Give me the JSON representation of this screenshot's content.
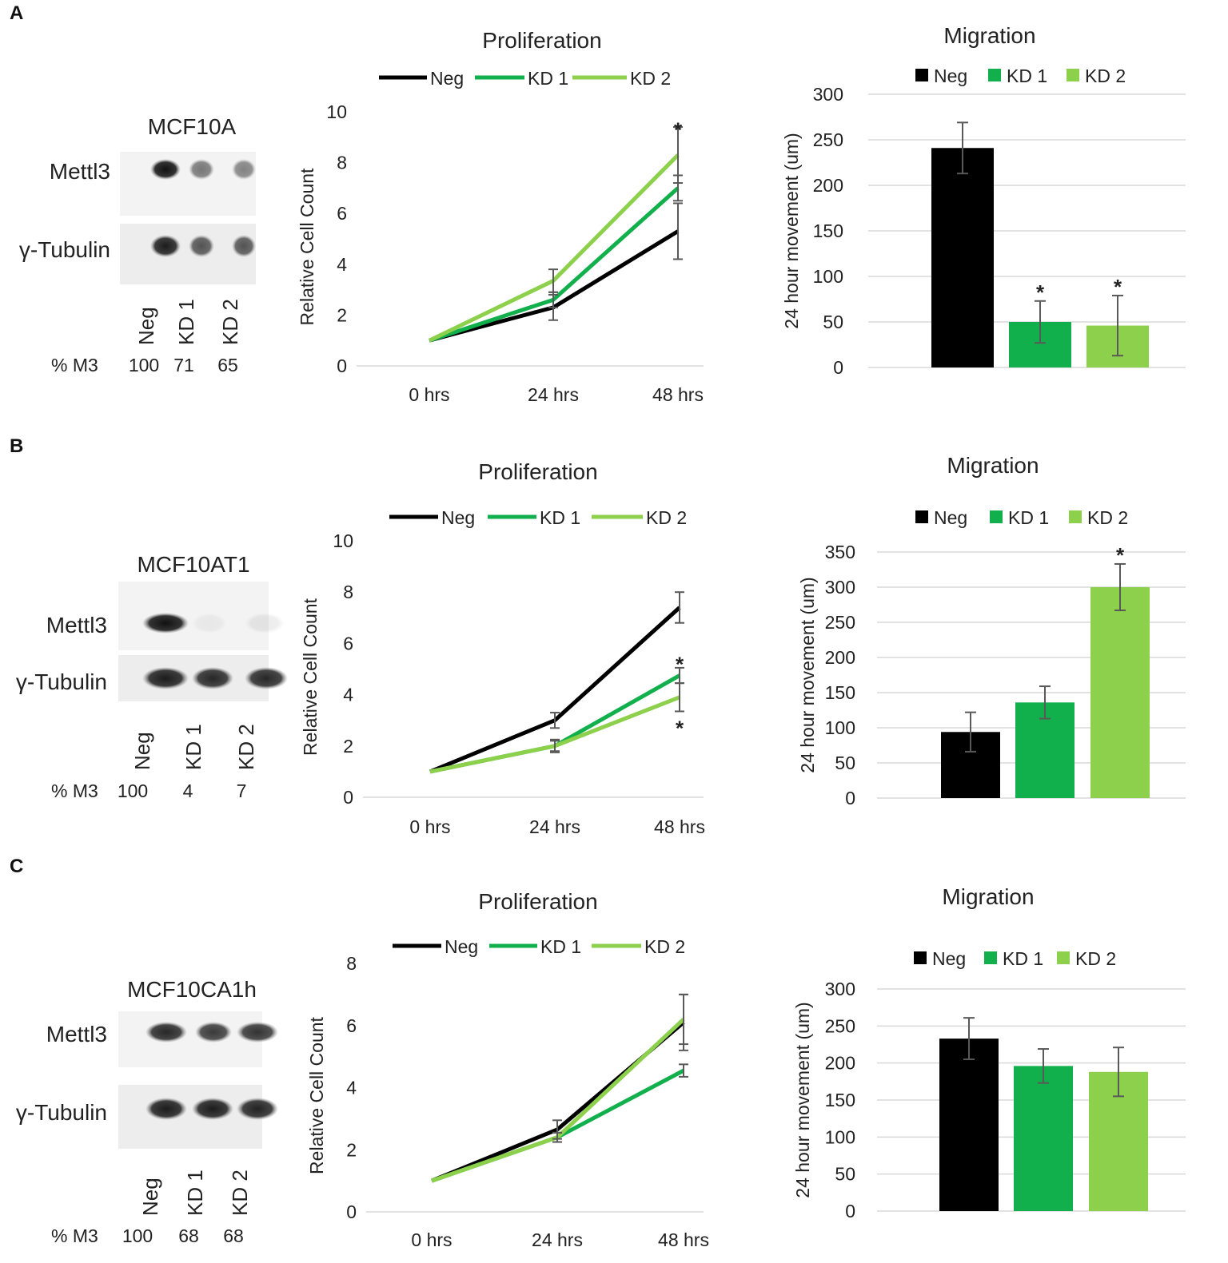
{
  "colors": {
    "Neg": "#000000",
    "KD 1": "#12b04c",
    "KD 2": "#8cd04c",
    "grid": "#d9d9d9",
    "errorbar": "#595959"
  },
  "panels": [
    {
      "letter": "A",
      "western_blot": {
        "cell_line": "MCF10A",
        "rows": [
          "Mettl3",
          "γ-Tubulin"
        ],
        "lanes": [
          "Neg",
          "KD 1",
          "KD 2"
        ],
        "pct_label": "% M3",
        "pct_values": [
          "100",
          "71",
          "65"
        ]
      }
    },
    {
      "letter": "B",
      "western_blot": {
        "cell_line": "MCF10AT1",
        "rows": [
          "Mettl3",
          "γ-Tubulin"
        ],
        "lanes": [
          "Neg",
          "KD 1",
          "KD 2"
        ],
        "pct_label": "% M3",
        "pct_values": [
          "100",
          "4",
          "7"
        ]
      }
    },
    {
      "letter": "C",
      "western_blot": {
        "cell_line": "MCF10CA1h",
        "rows": [
          "Mettl3",
          "γ-Tubulin"
        ],
        "lanes": [
          "Neg",
          "KD 1",
          "KD 2"
        ],
        "pct_label": "% M3",
        "pct_values": [
          "100",
          "68",
          "68"
        ]
      }
    }
  ],
  "chart_data": [
    {
      "panel": "A",
      "type": "line",
      "title": "Proliferation",
      "x": [
        "0 hrs",
        "24 hrs",
        "48 hrs"
      ],
      "xlabel": "",
      "ylabel": "Relative Cell Count",
      "ylim": [
        0,
        10
      ],
      "yticks": [
        0,
        2,
        4,
        6,
        8,
        10
      ],
      "grid": false,
      "legend": "top",
      "series": [
        {
          "name": "Neg",
          "values": [
            1,
            2.3,
            5.3
          ],
          "err": [
            0,
            0.5,
            1.1
          ]
        },
        {
          "name": "KD 1",
          "values": [
            1,
            2.6,
            7.0
          ],
          "err": [
            0,
            0.3,
            0.5
          ]
        },
        {
          "name": "KD 2",
          "values": [
            1,
            3.35,
            8.3
          ],
          "err": [
            0,
            0.45,
            1.1
          ]
        }
      ],
      "annotations": [
        {
          "text": "*",
          "x": "48 hrs",
          "y": 9.45
        }
      ]
    },
    {
      "panel": "A",
      "type": "bar",
      "title": "Migration",
      "categories": [
        "Neg",
        "KD 1",
        "KD 2"
      ],
      "xlabel": "",
      "ylabel": "24 hour movement (um)",
      "ylim": [
        0,
        300
      ],
      "yticks": [
        0,
        50,
        100,
        150,
        200,
        250,
        300
      ],
      "grid": true,
      "legend": "top",
      "values": [
        241,
        50,
        46
      ],
      "err": [
        28,
        23,
        33
      ],
      "annotations": [
        {
          "text": "*",
          "category": "KD 1"
        },
        {
          "text": "*",
          "category": "KD 2"
        }
      ]
    },
    {
      "panel": "B",
      "type": "line",
      "title": "Proliferation",
      "x": [
        "0 hrs",
        "24 hrs",
        "48 hrs"
      ],
      "xlabel": "",
      "ylabel": "Relative Cell Count",
      "ylim": [
        0,
        10
      ],
      "yticks": [
        0,
        2,
        4,
        6,
        8,
        10
      ],
      "grid": false,
      "legend": "top",
      "series": [
        {
          "name": "Neg",
          "values": [
            1,
            3.0,
            7.4
          ],
          "err": [
            0,
            0.3,
            0.6
          ]
        },
        {
          "name": "KD 1",
          "values": [
            1,
            2.0,
            4.75
          ],
          "err": [
            0,
            0.2,
            0.3
          ]
        },
        {
          "name": "KD 2",
          "values": [
            1,
            2.0,
            3.9
          ],
          "err": [
            0,
            0.25,
            0.55
          ]
        }
      ],
      "annotations": [
        {
          "text": "*",
          "x": "48 hrs",
          "y": 5.35
        },
        {
          "text": "*",
          "x": "48 hrs",
          "y": 2.85
        }
      ]
    },
    {
      "panel": "B",
      "type": "bar",
      "title": "Migration",
      "categories": [
        "Neg",
        "KD 1",
        "KD 2"
      ],
      "xlabel": "",
      "ylabel": "24 hour movement (um)",
      "ylim": [
        0,
        350
      ],
      "yticks": [
        0,
        50,
        100,
        150,
        200,
        250,
        300,
        350
      ],
      "grid": true,
      "legend": "top",
      "values": [
        94,
        136,
        300
      ],
      "err": [
        28,
        23,
        33
      ],
      "annotations": [
        {
          "text": "*",
          "category": "KD 2"
        }
      ]
    },
    {
      "panel": "C",
      "type": "line",
      "title": "Proliferation",
      "x": [
        "0 hrs",
        "24 hrs",
        "48 hrs"
      ],
      "xlabel": "",
      "ylabel": "Relative Cell Count",
      "ylim": [
        0,
        8
      ],
      "yticks": [
        0,
        2,
        4,
        6,
        8
      ],
      "grid": false,
      "legend": "top",
      "series": [
        {
          "name": "Neg",
          "values": [
            1,
            2.65,
            6.1
          ],
          "err": [
            0,
            0.3,
            0.9
          ]
        },
        {
          "name": "KD 1",
          "values": [
            1,
            2.4,
            4.55
          ],
          "err": [
            0,
            0.15,
            0.2
          ]
        },
        {
          "name": "KD 2",
          "values": [
            1,
            2.4,
            6.2
          ],
          "err": [
            0,
            0.15,
            0.8
          ]
        }
      ],
      "annotations": []
    },
    {
      "panel": "C",
      "type": "bar",
      "title": "Migration",
      "categories": [
        "Neg",
        "KD 1",
        "KD 2"
      ],
      "xlabel": "",
      "ylabel": "24 hour movement (um)",
      "ylim": [
        0,
        300
      ],
      "yticks": [
        0,
        50,
        100,
        150,
        200,
        250,
        300
      ],
      "grid": true,
      "legend": "top",
      "values": [
        233,
        196,
        188
      ],
      "err": [
        28,
        23,
        33
      ],
      "annotations": []
    }
  ]
}
